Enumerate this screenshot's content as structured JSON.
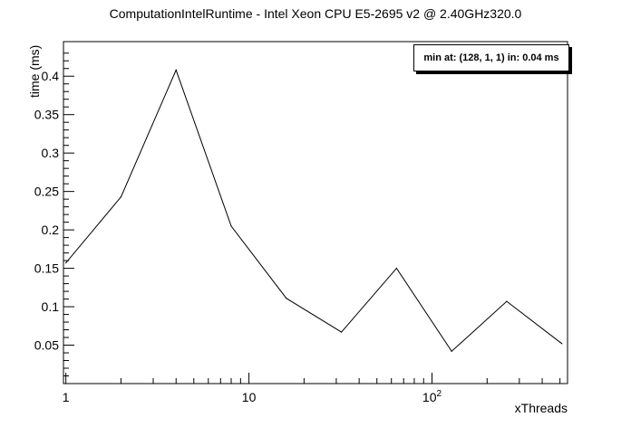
{
  "chart_data": {
    "type": "line",
    "title": "ComputationIntelRuntime - Intel Xeon CPU E5-2695 v2 @ 2.40GHz320.0",
    "xlabel": "xThreads",
    "ylabel": "time (ms)",
    "x_scale": "log",
    "xlim": [
      0.97,
      550
    ],
    "ylim": [
      0.0,
      0.445
    ],
    "x": [
      1,
      2,
      4,
      8,
      16,
      32,
      64,
      128,
      256,
      512
    ],
    "series": [
      {
        "values": [
          0.157,
          0.243,
          0.408,
          0.205,
          0.111,
          0.067,
          0.15,
          0.042,
          0.107,
          0.052
        ]
      }
    ],
    "x_ticks": [
      {
        "value": 1,
        "label": "1"
      },
      {
        "value": 10,
        "label": "10"
      },
      {
        "value": 100,
        "label": "10",
        "sup": "2"
      }
    ],
    "y_ticks": [
      {
        "value": 0.05,
        "label": "0.05"
      },
      {
        "value": 0.1,
        "label": "0.1"
      },
      {
        "value": 0.15,
        "label": "0.15"
      },
      {
        "value": 0.2,
        "label": "0.2"
      },
      {
        "value": 0.25,
        "label": "0.25"
      },
      {
        "value": 0.3,
        "label": "0.3"
      },
      {
        "value": 0.35,
        "label": "0.35"
      },
      {
        "value": 0.4,
        "label": "0.4"
      }
    ],
    "legend_text": "min at: (128, 1, 1) in: 0.04 ms",
    "legend_position": "top-right",
    "grid": false,
    "line_color": "#000000"
  }
}
